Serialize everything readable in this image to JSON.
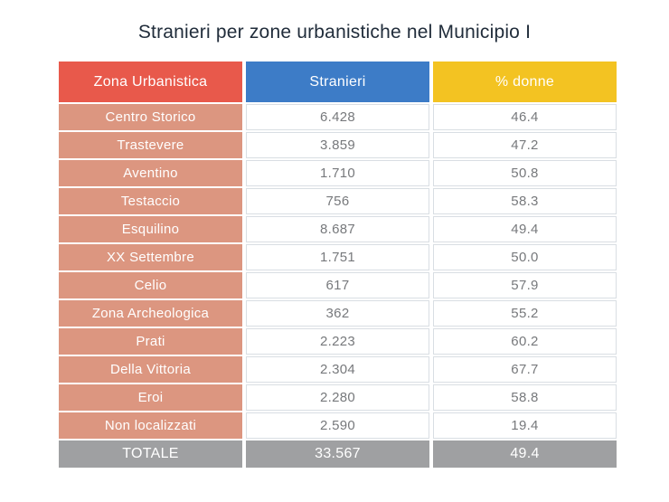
{
  "title": "Stranieri per zone urbanistiche nel Municipio I",
  "colors": {
    "header_zona": "#e8594b",
    "header_stranieri": "#3d7cc7",
    "header_donne": "#f3c322",
    "zone_cell": "#dc9680",
    "total_row": "#9fa0a2",
    "value_text": "#77797c",
    "title_text": "#212d3b",
    "cell_border": "#d9dee3"
  },
  "table": {
    "headers": [
      "Zona Urbanistica",
      "Stranieri",
      "% donne"
    ],
    "rows": [
      {
        "zone": "Centro Storico",
        "stranieri": "6.428",
        "donne": "46.4"
      },
      {
        "zone": "Trastevere",
        "stranieri": "3.859",
        "donne": "47.2"
      },
      {
        "zone": "Aventino",
        "stranieri": "1.710",
        "donne": "50.8"
      },
      {
        "zone": "Testaccio",
        "stranieri": "756",
        "donne": "58.3"
      },
      {
        "zone": "Esquilino",
        "stranieri": "8.687",
        "donne": "49.4"
      },
      {
        "zone": "XX Settembre",
        "stranieri": "1.751",
        "donne": "50.0"
      },
      {
        "zone": "Celio",
        "stranieri": "617",
        "donne": "57.9"
      },
      {
        "zone": "Zona Archeologica",
        "stranieri": "362",
        "donne": "55.2"
      },
      {
        "zone": "Prati",
        "stranieri": "2.223",
        "donne": "60.2"
      },
      {
        "zone": "Della Vittoria",
        "stranieri": "2.304",
        "donne": "67.7"
      },
      {
        "zone": "Eroi",
        "stranieri": "2.280",
        "donne": "58.8"
      },
      {
        "zone": "Non localizzati",
        "stranieri": "2.590",
        "donne": "19.4"
      }
    ],
    "total": {
      "zone": "TOTALE",
      "stranieri": "33.567",
      "donne": "49.4"
    }
  },
  "chart_data": {
    "type": "table",
    "title": "Stranieri per zone urbanistiche nel Municipio I",
    "columns": [
      "Zona Urbanistica",
      "Stranieri",
      "% donne"
    ],
    "rows": [
      [
        "Centro Storico",
        6428,
        46.4
      ],
      [
        "Trastevere",
        3859,
        47.2
      ],
      [
        "Aventino",
        1710,
        50.8
      ],
      [
        "Testaccio",
        756,
        58.3
      ],
      [
        "Esquilino",
        8687,
        49.4
      ],
      [
        "XX Settembre",
        1751,
        50.0
      ],
      [
        "Celio",
        617,
        57.9
      ],
      [
        "Zona Archeologica",
        362,
        55.2
      ],
      [
        "Prati",
        2223,
        60.2
      ],
      [
        "Della Vittoria",
        2304,
        67.7
      ],
      [
        "Eroi",
        2280,
        58.8
      ],
      [
        "Non localizzati",
        2590,
        19.4
      ]
    ],
    "total_row": [
      "TOTALE",
      33567,
      49.4
    ],
    "layout": {
      "header_colors": [
        "#e8594b",
        "#3d7cc7",
        "#f3c322"
      ],
      "grid": "gapped-cells",
      "legend": "none"
    }
  }
}
